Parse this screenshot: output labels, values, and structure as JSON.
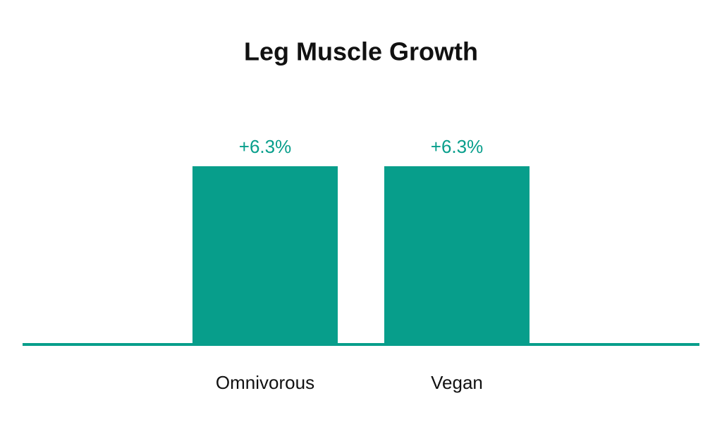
{
  "chart_data": {
    "type": "bar",
    "title": "Leg Muscle Growth",
    "categories": [
      "Omnivorous",
      "Vegan"
    ],
    "values": [
      6.3,
      6.3
    ],
    "value_labels": [
      "+6.3%",
      "+6.3%"
    ],
    "color": "#079e8b"
  }
}
